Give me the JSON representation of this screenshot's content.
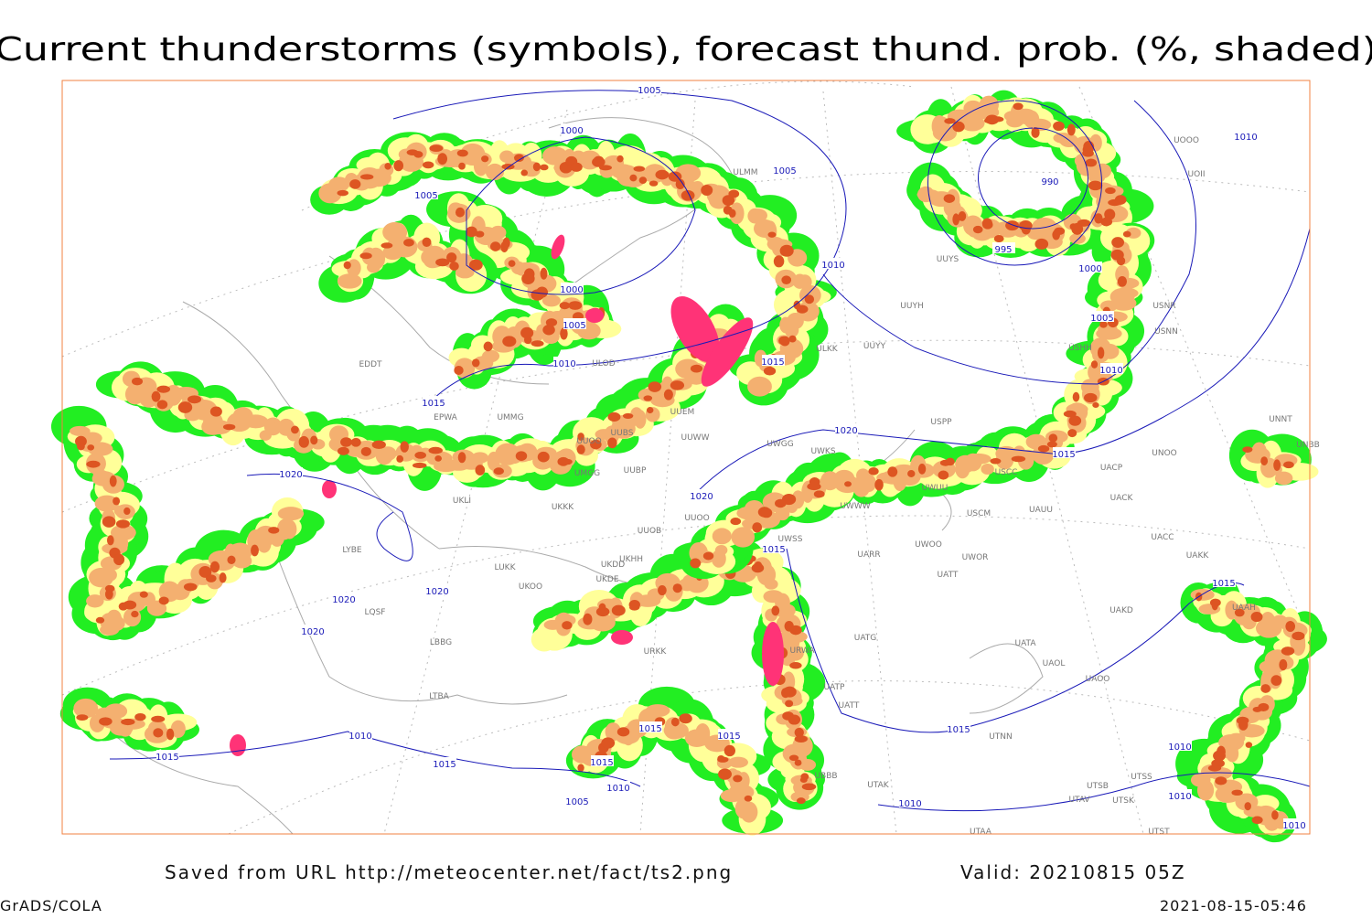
{
  "header": {
    "title": "Current thunderstorms (symbols), forecast thund. prob. (%, shaded)"
  },
  "footer": {
    "source": "Saved from URL http://meteocenter.net/fact/ts2.png",
    "valid": "Valid: 20210815 05Z",
    "software": "GrADS/COLA",
    "timestamp": "2021-08-15-05:46"
  },
  "isobar_labels": [
    1005,
    1000,
    1005,
    1005,
    1010,
    990,
    995,
    1000,
    1010,
    1000,
    1005,
    1010,
    1015,
    1005,
    1010,
    1015,
    1020,
    1015,
    1020,
    1020,
    1015,
    1020,
    1020,
    1020,
    1015,
    1015,
    1015,
    1010,
    1015,
    1015,
    1015,
    1010,
    1005,
    1010,
    1015,
    1010,
    1010,
    1010
  ],
  "stations": [
    "EDDT",
    "EPWA",
    "UMMG",
    "ULOD",
    "UUEM",
    "UUWW",
    "UUOO",
    "UUBS",
    "UMGG",
    "UUBP",
    "UKKK",
    "UKLI",
    "UUOB",
    "UUOO",
    "LUKK",
    "UKHH",
    "UKDD",
    "UKDE",
    "UKOO",
    "LBBG",
    "LTBA",
    "URKK",
    "URWA",
    "UATG",
    "UATP",
    "UATT",
    "UAUU",
    "USCM",
    "UACK",
    "UACC",
    "UAKK",
    "UAKD",
    "UATA",
    "UAOL",
    "UAOO",
    "UTNN",
    "UTAK",
    "UTAA",
    "UTAV",
    "UTSB",
    "UTSK",
    "UTST",
    "UTSS",
    "UWWW",
    "UWOO",
    "UWOR",
    "UATT",
    "UARR",
    "UWSS",
    "UWGG",
    "UWKS",
    "UWUU",
    "USCC",
    "UACP",
    "UNOO",
    "UNNT",
    "UNBB",
    "USNR",
    "USNN",
    "USHH",
    "UUYY",
    "UUYH",
    "ULKK",
    "UUYS",
    "USPP",
    "UOOO",
    "UOII",
    "ULMM",
    "UAAH",
    "UBBB",
    "LYBE",
    "LQSF"
  ]
}
